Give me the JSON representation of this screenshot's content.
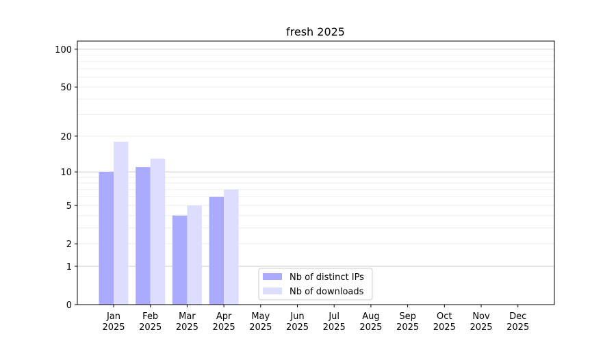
{
  "chart_data": {
    "type": "bar",
    "title": "fresh 2025",
    "xlabel": "",
    "ylabel": "",
    "yscale": "symlog (log of 1+x)",
    "ylim": [
      0,
      116
    ],
    "yticks": [
      0,
      1,
      2,
      5,
      10,
      20,
      50,
      100
    ],
    "grid": true,
    "categories": [
      "Jan\n2025",
      "Feb\n2025",
      "Mar\n2025",
      "Apr\n2025",
      "May\n2025",
      "Jun\n2025",
      "Jul\n2025",
      "Aug\n2025",
      "Sep\n2025",
      "Oct\n2025",
      "Nov\n2025",
      "Dec\n2025"
    ],
    "series": [
      {
        "name": "Nb of distinct IPs",
        "color": "#aaaaff",
        "values": [
          10,
          11,
          4,
          6,
          0,
          0,
          0,
          0,
          0,
          0,
          0,
          0
        ]
      },
      {
        "name": "Nb of downloads",
        "color": "#ddddff",
        "values": [
          18,
          13,
          5,
          7,
          0,
          0,
          0,
          0,
          0,
          0,
          0,
          0
        ]
      }
    ],
    "legend_position": "lower-center"
  }
}
